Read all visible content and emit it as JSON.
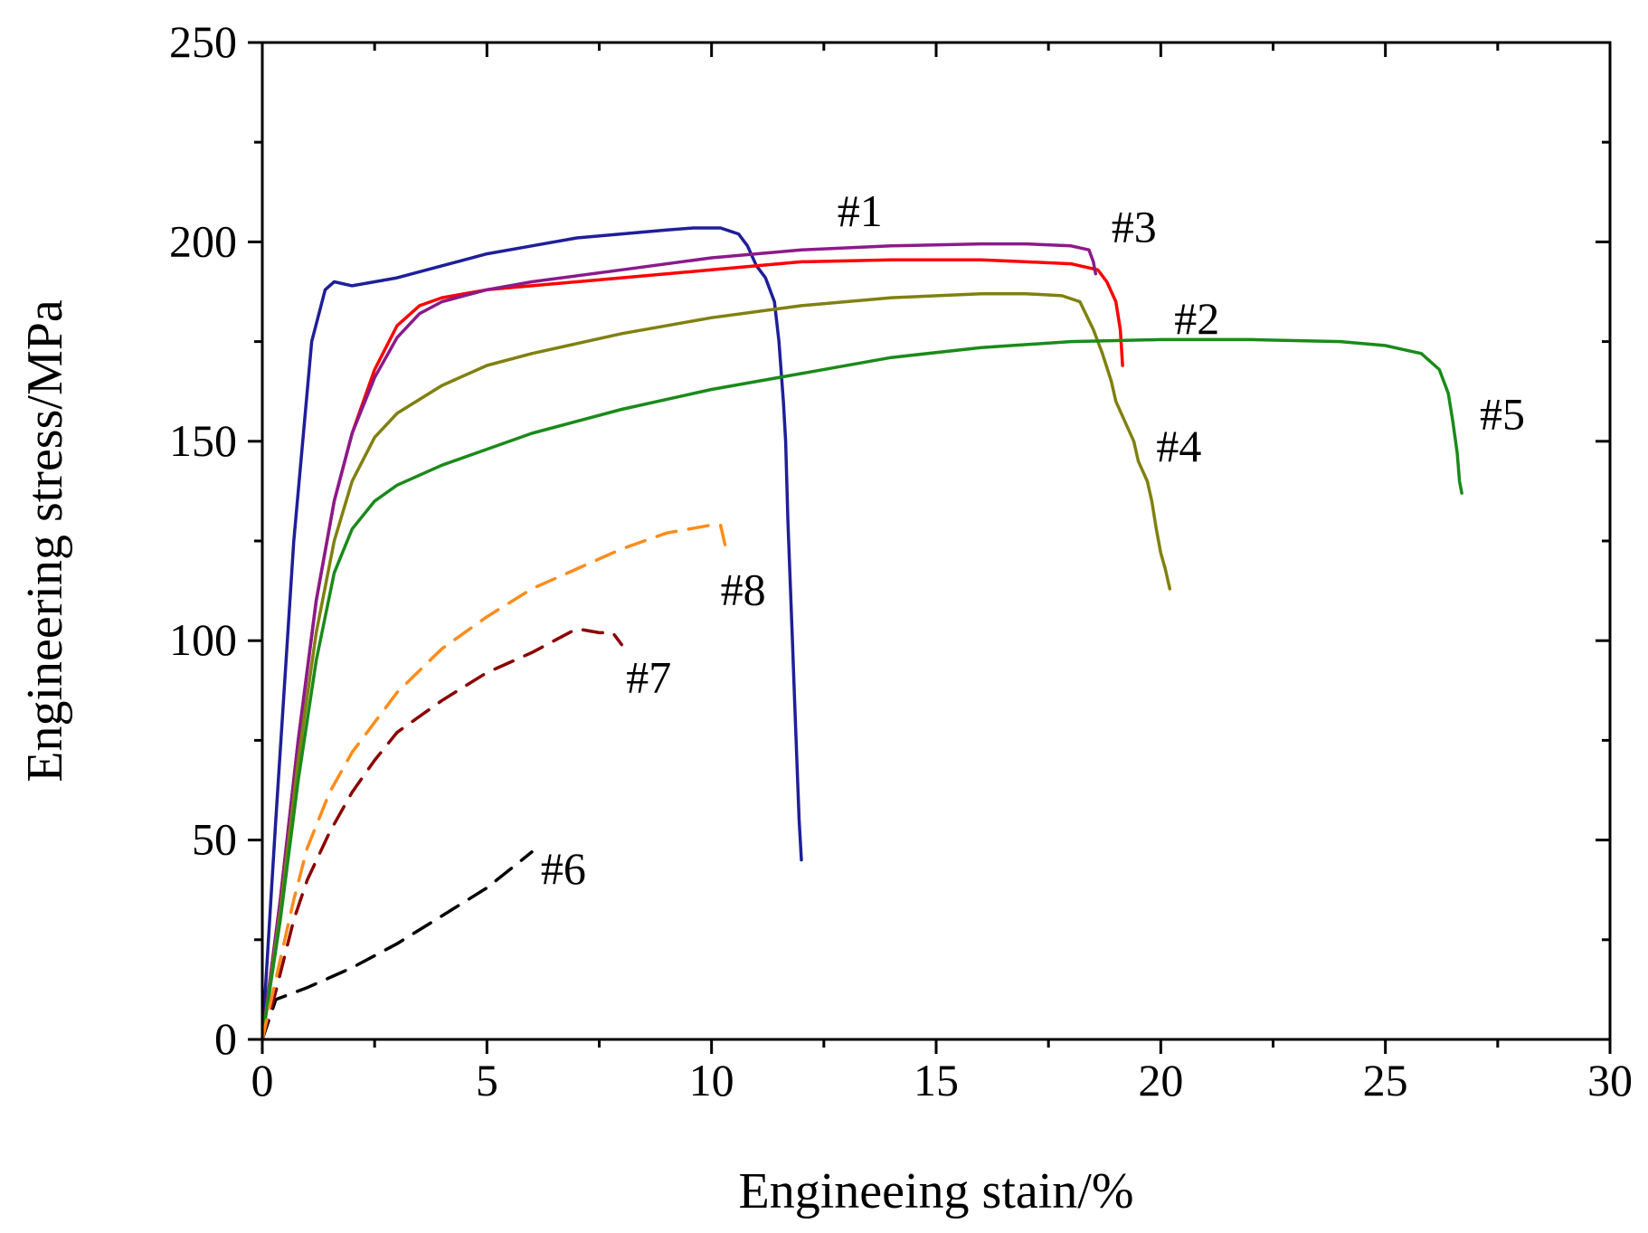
{
  "chart_data": {
    "type": "line",
    "title": "",
    "xlabel": "Engineeing stain/%",
    "ylabel": "Engineering stress/MPa",
    "xlim": [
      0,
      30
    ],
    "ylim": [
      0,
      250
    ],
    "x_ticks": [
      "0",
      "5",
      "10",
      "15",
      "20",
      "25",
      "30"
    ],
    "y_ticks": [
      "0",
      "50",
      "100",
      "150",
      "200",
      "250"
    ],
    "grid": false,
    "series": [
      {
        "name": "#1",
        "color": "#1f1f99",
        "dashed": false,
        "label_pos": [
          12.8,
          204
        ],
        "x": [
          0,
          0.3,
          0.7,
          1.1,
          1.4,
          1.6,
          2,
          2.5,
          3,
          4,
          5,
          6,
          7,
          8,
          9,
          9.6,
          10.2,
          10.6,
          10.8,
          11,
          11.2,
          11.4,
          11.5,
          11.6,
          11.65,
          11.7,
          11.75,
          11.8,
          11.85,
          11.9,
          11.95,
          12
        ],
        "y": [
          0,
          55,
          125,
          175,
          188,
          190,
          189,
          190,
          191,
          194,
          197,
          199,
          201,
          202,
          203,
          203.5,
          203.5,
          202,
          199,
          194,
          191,
          185,
          175,
          160,
          150,
          130,
          115,
          100,
          85,
          70,
          55,
          45
        ]
      },
      {
        "name": "#2",
        "color": "#ff0000",
        "dashed": false,
        "label_pos": [
          20.3,
          177
        ],
        "x": [
          0,
          0.4,
          0.8,
          1.2,
          1.6,
          2,
          2.5,
          3,
          3.5,
          4,
          5,
          6,
          8,
          10,
          12,
          14,
          16,
          17,
          18,
          18.6,
          18.8,
          19,
          19.1,
          19.15
        ],
        "y": [
          0,
          35,
          75,
          110,
          135,
          152,
          168,
          179,
          184,
          186,
          188,
          189,
          191,
          193,
          195,
          195.5,
          195.5,
          195,
          194.5,
          193,
          190,
          185,
          178,
          169
        ]
      },
      {
        "name": "#3",
        "color": "#8b1a8b",
        "dashed": false,
        "label_pos": [
          18.9,
          200
        ],
        "x": [
          0,
          0.4,
          0.8,
          1.2,
          1.6,
          2,
          2.5,
          3,
          3.5,
          4,
          5,
          6,
          8,
          10,
          12,
          14,
          16,
          17,
          18,
          18.4,
          18.5,
          18.55
        ],
        "y": [
          0,
          35,
          75,
          110,
          135,
          152,
          166,
          176,
          182,
          185,
          188,
          190,
          193,
          196,
          198,
          199,
          199.5,
          199.5,
          199,
          198,
          195,
          192
        ]
      },
      {
        "name": "#4",
        "color": "#808010",
        "dashed": false,
        "label_pos": [
          19.9,
          145
        ],
        "x": [
          0,
          0.4,
          0.8,
          1.2,
          1.6,
          2,
          2.5,
          3,
          4,
          5,
          6,
          8,
          10,
          12,
          14,
          16,
          17,
          17.8,
          18.2,
          18.5,
          18.7,
          18.9,
          19,
          19.2,
          19.4,
          19.5,
          19.7,
          19.8,
          19.9,
          20,
          20.1,
          20.2
        ],
        "y": [
          0,
          32,
          70,
          102,
          125,
          140,
          151,
          157,
          164,
          169,
          172,
          177,
          181,
          184,
          186,
          187,
          187,
          186.5,
          185,
          178,
          172,
          165,
          160,
          155,
          150,
          145,
          140,
          135,
          128,
          122,
          118,
          113
        ]
      },
      {
        "name": "#5",
        "color": "#1a8a1a",
        "dashed": false,
        "label_pos": [
          27.1,
          153
        ],
        "x": [
          0,
          0.4,
          0.8,
          1.2,
          1.6,
          2,
          2.5,
          3,
          4,
          5,
          6,
          8,
          10,
          12,
          14,
          16,
          18,
          20,
          22,
          24,
          25,
          25.8,
          26.2,
          26.4,
          26.5,
          26.6,
          26.65,
          26.7
        ],
        "y": [
          0,
          30,
          65,
          95,
          117,
          128,
          135,
          139,
          144,
          148,
          152,
          158,
          163,
          167,
          171,
          173.5,
          175,
          175.5,
          175.5,
          175,
          174,
          172,
          168,
          162,
          155,
          147,
          140,
          137
        ]
      },
      {
        "name": "#6",
        "color": "#000000",
        "dashed": true,
        "label_pos": [
          6.2,
          39
        ],
        "x": [
          0,
          0.3,
          1,
          2,
          3,
          4,
          5,
          6
        ],
        "y": [
          0,
          10,
          13,
          18,
          24,
          31,
          38,
          47
        ]
      },
      {
        "name": "#7",
        "color": "#8b0000",
        "dashed": true,
        "label_pos": [
          8.1,
          87
        ],
        "x": [
          0,
          0.3,
          0.7,
          1,
          1.5,
          2,
          2.5,
          3,
          4,
          5,
          6,
          6.5,
          7,
          7.5,
          7.8,
          8
        ],
        "y": [
          0,
          12,
          30,
          40,
          52,
          62,
          70,
          77,
          85,
          92,
          97,
          100,
          103,
          102,
          102,
          99
        ]
      },
      {
        "name": "#8",
        "color": "#ff8c1a",
        "dashed": true,
        "label_pos": [
          10.2,
          109
        ],
        "x": [
          0,
          0.3,
          0.7,
          1,
          1.5,
          2,
          3,
          4,
          5,
          6,
          7,
          8,
          9,
          10,
          10.2,
          10.3
        ],
        "y": [
          0,
          15,
          35,
          48,
          62,
          72,
          87,
          98,
          106,
          113,
          118,
          123,
          127,
          129,
          129,
          124
        ]
      }
    ]
  }
}
